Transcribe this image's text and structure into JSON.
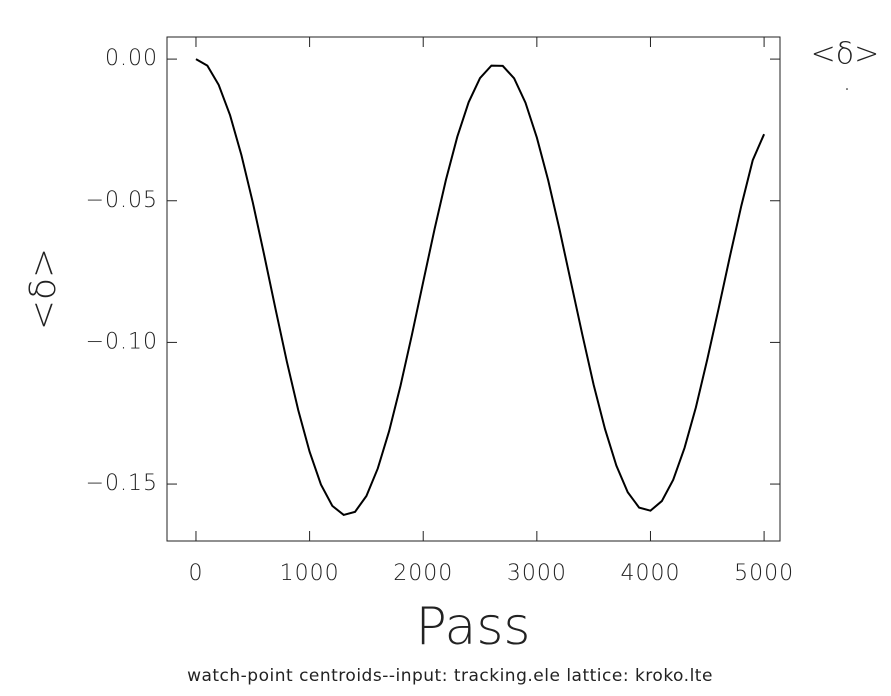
{
  "chart_data": {
    "type": "line",
    "title": "watch-point centroids--input: tracking.ele  lattice: kroko.lte",
    "xlabel": "Pass",
    "ylabel": "<δ>",
    "x": [
      0,
      100,
      200,
      300,
      400,
      500,
      600,
      700,
      800,
      900,
      1000,
      1100,
      1200,
      1300,
      1400,
      1500,
      1600,
      1700,
      1800,
      1900,
      2000,
      2100,
      2200,
      2300,
      2400,
      2500,
      2600,
      2700,
      2800,
      2900,
      3000,
      3100,
      3200,
      3300,
      3400,
      3500,
      3600,
      3700,
      3800,
      3900,
      4000,
      4100,
      4200,
      4300,
      4400,
      4500,
      4600,
      4700,
      4800,
      4900,
      5000
    ],
    "series": [
      {
        "name": "<δ>",
        "color": "#000000",
        "values": [
          0.0,
          -0.0023,
          -0.0091,
          -0.0198,
          -0.0339,
          -0.0506,
          -0.0691,
          -0.0882,
          -0.1068,
          -0.1239,
          -0.1386,
          -0.1502,
          -0.1577,
          -0.1609,
          -0.1598,
          -0.1542,
          -0.1445,
          -0.1313,
          -0.1153,
          -0.0974,
          -0.0786,
          -0.06,
          -0.0426,
          -0.0274,
          -0.0152,
          -0.0067,
          -0.0023,
          -0.0024,
          -0.0068,
          -0.0154,
          -0.0277,
          -0.0428,
          -0.0602,
          -0.0787,
          -0.0972,
          -0.115,
          -0.1306,
          -0.1435,
          -0.1529,
          -0.1583,
          -0.1594,
          -0.156,
          -0.1485,
          -0.1372,
          -0.1229,
          -0.106,
          -0.088,
          -0.0695,
          -0.0517,
          -0.0357,
          -0.0265
        ]
      }
    ],
    "xlim": [
      -255,
      5140
    ],
    "ylim": [
      -0.1701,
      0.0078
    ],
    "xticks": [
      0,
      1000,
      2000,
      3000,
      4000,
      5000
    ],
    "yticks": [
      {
        "value": 0,
        "label": "0.00"
      },
      {
        "value": -0.05,
        "label": "−0.05"
      },
      {
        "value": -0.1,
        "label": "−0.10"
      },
      {
        "value": -0.15,
        "label": "−0.15"
      }
    ],
    "grid": false,
    "legend": "top-right"
  }
}
